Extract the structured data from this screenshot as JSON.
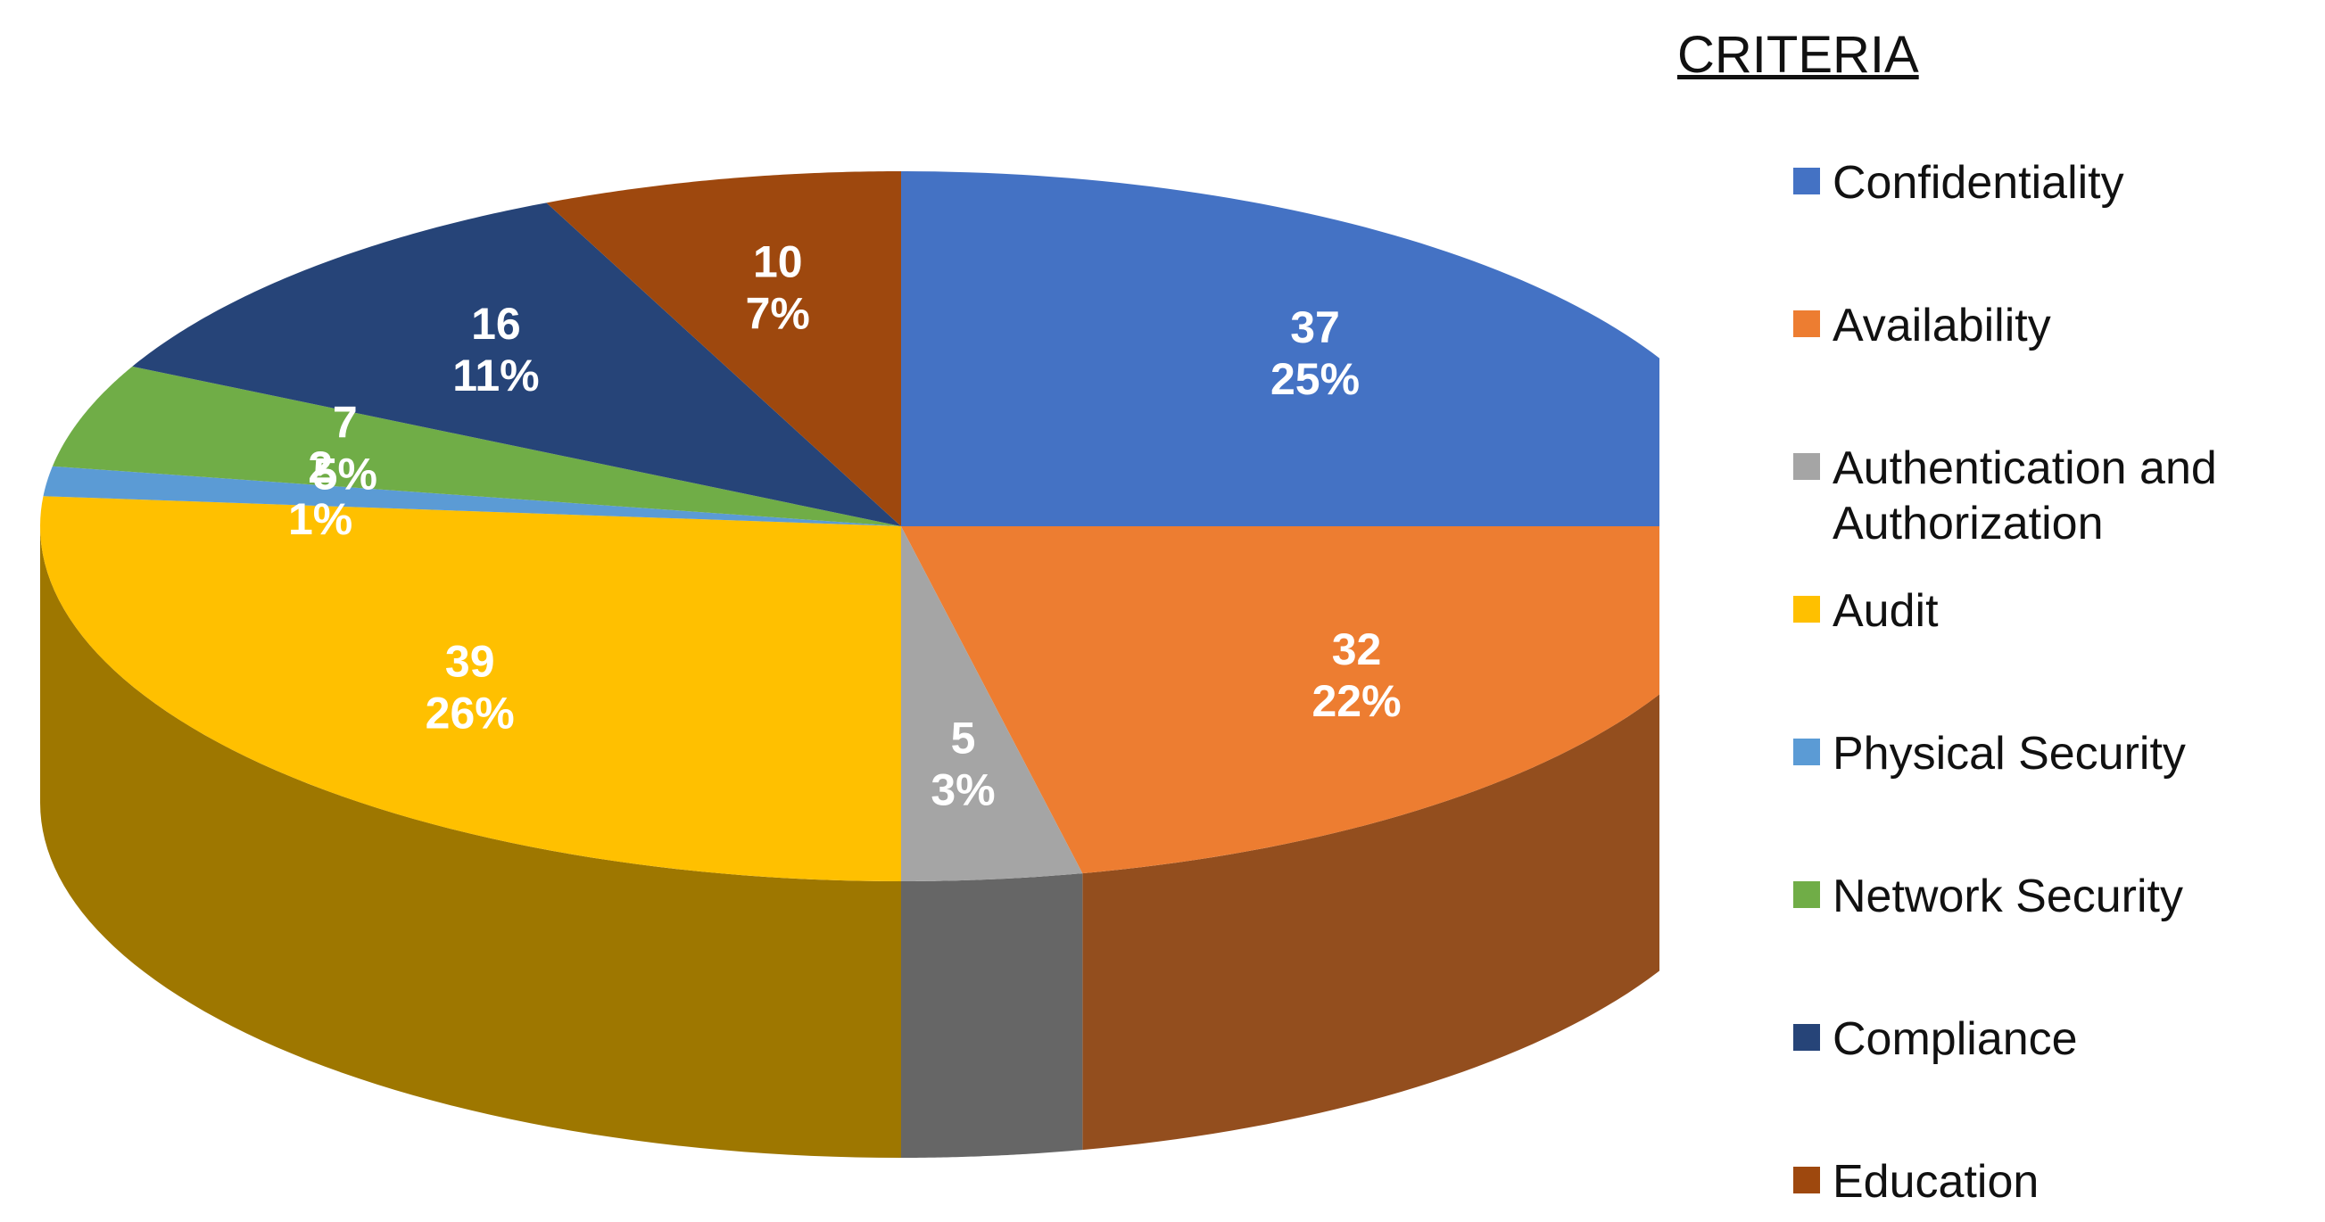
{
  "chart_data": {
    "type": "pie",
    "legend_title": "CRITERIA",
    "categories": [
      "Confidentiality",
      "Availability",
      "Authentication and Authorization",
      "Audit",
      "Physical Security",
      "Network Security",
      "Compliance",
      "Education"
    ],
    "values": [
      37,
      32,
      5,
      39,
      2,
      7,
      16,
      10
    ],
    "percentage_labels": [
      "25%",
      "22%",
      "3%",
      "26%",
      "1%",
      "5%",
      "11%",
      "7%"
    ],
    "colors": [
      "#4472c4",
      "#ed7d31",
      "#a5a5a5",
      "#ffc000",
      "#5b9bd5",
      "#70ad47",
      "#264478",
      "#9e480e"
    ],
    "legend": "right"
  }
}
